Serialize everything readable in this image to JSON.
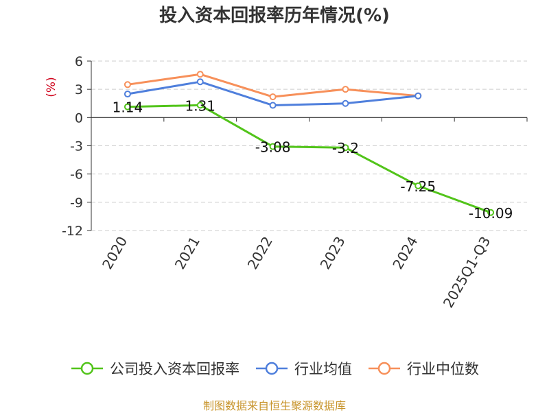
{
  "chart_data": {
    "type": "line",
    "title": "投入资本回报率历年情况(%)",
    "ylabel": "(%)",
    "categories": [
      "2020",
      "2021",
      "2022",
      "2023",
      "2024",
      "2025Q1-Q3"
    ],
    "yticks": [
      6,
      3,
      0,
      -3,
      -6,
      -9,
      -12
    ],
    "ylim": [
      -12,
      6
    ],
    "grid": true,
    "legend_position": "bottom",
    "series": [
      {
        "name": "公司投入资本回报率",
        "color": "#52c41a",
        "values": [
          1.14,
          1.31,
          -3.08,
          -3.2,
          -7.25,
          -10.09
        ],
        "labels": [
          "1.14",
          "1.31",
          "-3.08",
          "-3.2",
          "-7.25",
          "-10.09"
        ]
      },
      {
        "name": "行业均值",
        "color": "#4f7fdc",
        "values": [
          2.5,
          3.8,
          1.3,
          1.5,
          2.3,
          null
        ]
      },
      {
        "name": "行业中位数",
        "color": "#f7905a",
        "values": [
          3.5,
          4.6,
          2.2,
          3.0,
          2.3,
          null
        ]
      }
    ]
  },
  "footer": "制图数据来自恒生聚源数据库"
}
